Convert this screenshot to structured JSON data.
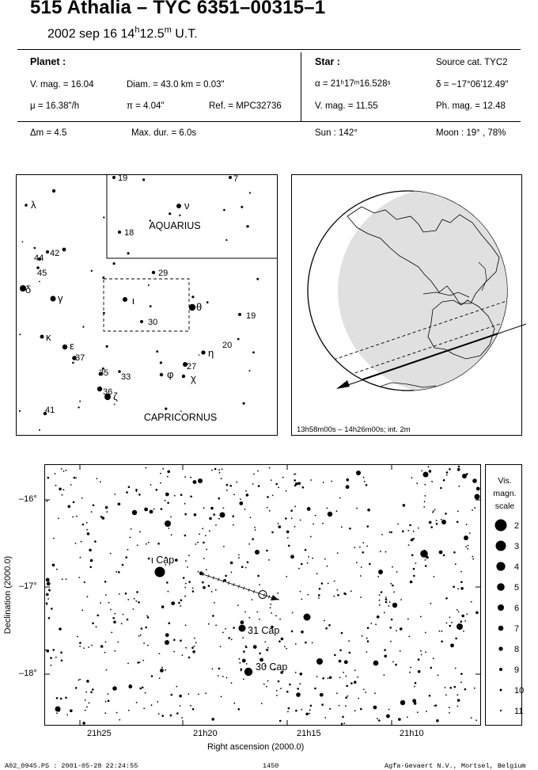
{
  "header": {
    "title": "515 Athalia  –  TYC 6351–00315–1",
    "date": "2002 sep 16  14",
    "hour_sup": "h",
    "minutes": "12.5",
    "min_sup": "m",
    "ut": " U.T."
  },
  "planet": {
    "label": "Planet :",
    "vmag": "V. mag. = 16.04",
    "diam": "Diam. = 43.0 km = 0.03\"",
    "mu": "μ = 16.38\"/h",
    "pi": "π = 4.04\"",
    "ref": "Ref. = MPC32736"
  },
  "star": {
    "label": "Star :",
    "source": "Source cat.  TYC2",
    "alpha": "α = 21ʰ17ᵐ16.528ˢ",
    "delta": "δ = −17°06'12.49\"",
    "vmag": "V. mag. = 11.55",
    "phmag": "Ph. mag. = 12.48"
  },
  "circumstances": {
    "dm": "Δm = 4.5",
    "maxdur": "Max. dur. = 6.0s",
    "sun": "Sun : 142°",
    "moon": "Moon :  19° , 78%"
  },
  "finder": {
    "constellation_1": "AQUARIUS",
    "constellation_2": "CAPRICORNUS",
    "labels": [
      {
        "t": "λ"
      },
      {
        "t": "44"
      },
      {
        "t": "42"
      },
      {
        "t": "45"
      },
      {
        "t": "δ"
      },
      {
        "t": "γ"
      },
      {
        "t": "κ"
      },
      {
        "t": "ε"
      },
      {
        "t": "37"
      },
      {
        "t": "35"
      },
      {
        "t": "33"
      },
      {
        "t": "36"
      },
      {
        "t": "ζ"
      },
      {
        "t": "41"
      },
      {
        "t": "19"
      },
      {
        "t": "7"
      },
      {
        "t": "ν"
      },
      {
        "t": "18"
      },
      {
        "t": "29"
      },
      {
        "t": "ι"
      },
      {
        "t": "θ"
      },
      {
        "t": "30"
      },
      {
        "t": "19"
      },
      {
        "t": "20"
      },
      {
        "t": "η"
      },
      {
        "t": "27"
      },
      {
        "t": "φ"
      },
      {
        "t": "χ"
      }
    ]
  },
  "globe": {
    "caption": "13h58m00s – 14h26m00s; int.  2m"
  },
  "starmap": {
    "xlabel": "Right ascension (2000.0)",
    "ylabel": "Declination (2000.0)",
    "ra_ticks": [
      "21h25",
      "21h20",
      "21h15",
      "21h10"
    ],
    "dec_ticks": [
      "–16°",
      "–17°",
      "–18°"
    ],
    "star_labels": [
      "ι Cap",
      "31 Cap",
      "30 Cap"
    ]
  },
  "scale": {
    "title_1": "Vis.",
    "title_2": "magn.",
    "title_3": "scale",
    "mags": [
      "2",
      "3",
      "4",
      "5",
      "6",
      "7",
      "8",
      "9",
      "10",
      "11"
    ]
  },
  "footer": {
    "left": "A02_0945.PS : 2001-05-28 22:24:55",
    "center": "1450",
    "right": "Agfa-Gevaert N.V., Mortsel, Belgium"
  }
}
